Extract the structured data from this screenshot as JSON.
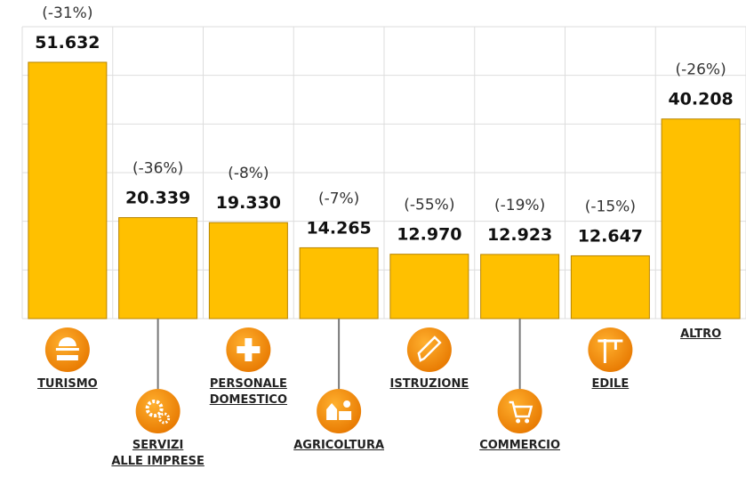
{
  "chart_data": {
    "type": "bar",
    "categories": [
      "TURISMO",
      "SERVIZI\nALLE IMPRESE",
      "PERSONALE\nDOMESTICO",
      "AGRICOLTURA",
      "ISTRUZIONE",
      "COMMERCIO",
      "EDILE",
      "ALTRO"
    ],
    "values": [
      51632,
      20339,
      19330,
      14265,
      12970,
      12923,
      12647,
      40208
    ],
    "value_labels": [
      "51.632",
      "20.339",
      "19.330",
      "14.265",
      "12.970",
      "12.923",
      "12.647",
      "40.208"
    ],
    "annotations": [
      "(-31%)",
      "(-36%)",
      "(-8%)",
      "(-7%)",
      "(-55%)",
      "(-19%)",
      "(-15%)",
      "(-26%)"
    ],
    "color": "#ffc000",
    "ylim": [
      0,
      58800
    ],
    "grid": true
  }
}
